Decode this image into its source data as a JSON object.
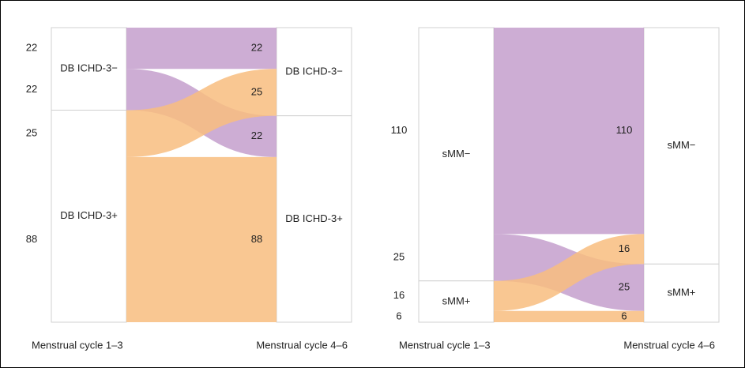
{
  "chart_data": [
    {
      "type": "alluvial",
      "axes": [
        "Menstrual cycle 1–3",
        "Menstrual cycle 4–6"
      ],
      "strata": [
        "DB ICHD-3−",
        "DB ICHD-3+"
      ],
      "values": [
        [
          22,
          22
        ],
        [
          25,
          88
        ]
      ],
      "colors": [
        "#c49fcc",
        "#f8bd7f"
      ]
    },
    {
      "type": "alluvial",
      "axes": [
        "Menstrual cycle 1–3",
        "Menstrual cycle 4–6"
      ],
      "strata": [
        "sMM−",
        "sMM+"
      ],
      "values": [
        [
          110,
          25
        ],
        [
          16,
          6
        ]
      ],
      "colors": [
        "#c49fcc",
        "#f8bd7f"
      ]
    }
  ]
}
